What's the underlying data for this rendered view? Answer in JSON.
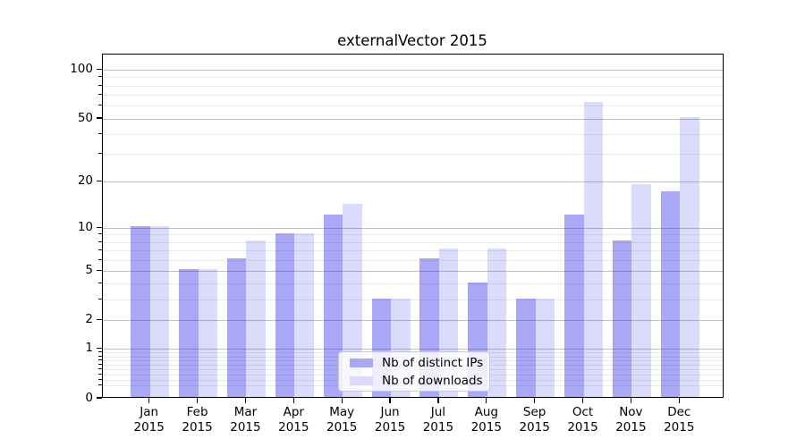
{
  "figure": {
    "title": "externalVector 2015"
  },
  "chart_data": {
    "type": "bar",
    "title": "externalVector 2015",
    "categories": [
      "Jan",
      "Feb",
      "Mar",
      "Apr",
      "May",
      "Jun",
      "Jul",
      "Aug",
      "Sep",
      "Oct",
      "Nov",
      "Dec"
    ],
    "year_label": "2015",
    "series": [
      {
        "name": "Nb of distinct IPs",
        "color": "#a8a8f4",
        "fill": "rgba(0,0,230,0.34)",
        "values": [
          10,
          5,
          6,
          9,
          12,
          3,
          6,
          4,
          3,
          12,
          8,
          17
        ]
      },
      {
        "name": "Nb of downloads",
        "color": "#dbdbf9",
        "fill": "rgba(0,0,230,0.14)",
        "values": [
          10,
          5,
          8,
          9,
          14,
          3,
          7,
          7,
          3,
          62,
          19,
          50
        ]
      }
    ],
    "yscale": "log1p",
    "ylim": [
      0,
      125
    ],
    "y_major_ticks": [
      0,
      1,
      2,
      5,
      10,
      20,
      50,
      100
    ],
    "y_minor_ticks": [
      0.2,
      0.3,
      0.4,
      0.5,
      0.6,
      0.7,
      0.8,
      0.9,
      3,
      4,
      6,
      7,
      8,
      9,
      30,
      40,
      60,
      70,
      80,
      90
    ],
    "xlabel": "",
    "ylabel": "",
    "grid": true,
    "legend": {
      "position": "lower-center",
      "entries": [
        "Nb of distinct IPs",
        "Nb of downloads"
      ]
    }
  },
  "colors": {
    "bar_distinct_ips": "#a8a8f4",
    "bar_downloads": "#dbdbf9",
    "grid_major": "#c3c3c3",
    "grid_minor": "#ebebeb",
    "axis_frame": "#000000",
    "legend_border": "#cccccc",
    "background": "#ffffff"
  }
}
